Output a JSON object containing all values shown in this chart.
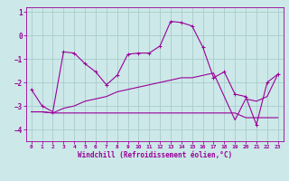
{
  "xlabel": "Windchill (Refroidissement éolien,°C)",
  "x_values": [
    0,
    1,
    2,
    3,
    4,
    5,
    6,
    7,
    8,
    9,
    10,
    11,
    12,
    13,
    14,
    15,
    16,
    17,
    18,
    19,
    20,
    21,
    22,
    23
  ],
  "line1": [
    -2.3,
    -3.0,
    -3.25,
    -0.7,
    -0.75,
    -1.2,
    -1.55,
    -2.1,
    -1.7,
    -0.8,
    -0.75,
    -0.75,
    -0.45,
    0.6,
    0.55,
    0.4,
    -0.5,
    -1.8,
    -1.55,
    -2.5,
    -2.6,
    -3.8,
    -2.0,
    -1.65
  ],
  "line2": [
    -3.25,
    -3.25,
    -3.3,
    -3.3,
    -3.3,
    -3.3,
    -3.3,
    -3.3,
    -3.3,
    -3.3,
    -3.3,
    -3.3,
    -3.3,
    -3.3,
    -3.3,
    -3.3,
    -3.3,
    -3.3,
    -3.3,
    -3.3,
    -3.5,
    -3.5,
    -3.5,
    -3.5
  ],
  "line3": [
    -3.25,
    -3.25,
    -3.3,
    -3.1,
    -3.0,
    -2.8,
    -2.7,
    -2.6,
    -2.4,
    -2.3,
    -2.2,
    -2.1,
    -2.0,
    -1.9,
    -1.8,
    -1.8,
    -1.7,
    -1.6,
    -2.6,
    -3.6,
    -2.7,
    -2.8,
    -2.6,
    -1.65
  ],
  "line_color": "#990099",
  "bg_color": "#cce8e8",
  "grid_color": "#aacccc",
  "ylim": [
    -4.5,
    1.2
  ],
  "yticks": [
    -4,
    -3,
    -2,
    -1,
    0,
    1
  ],
  "xticks": [
    0,
    1,
    2,
    3,
    4,
    5,
    6,
    7,
    8,
    9,
    10,
    11,
    12,
    13,
    14,
    15,
    16,
    17,
    18,
    19,
    20,
    21,
    22,
    23
  ]
}
